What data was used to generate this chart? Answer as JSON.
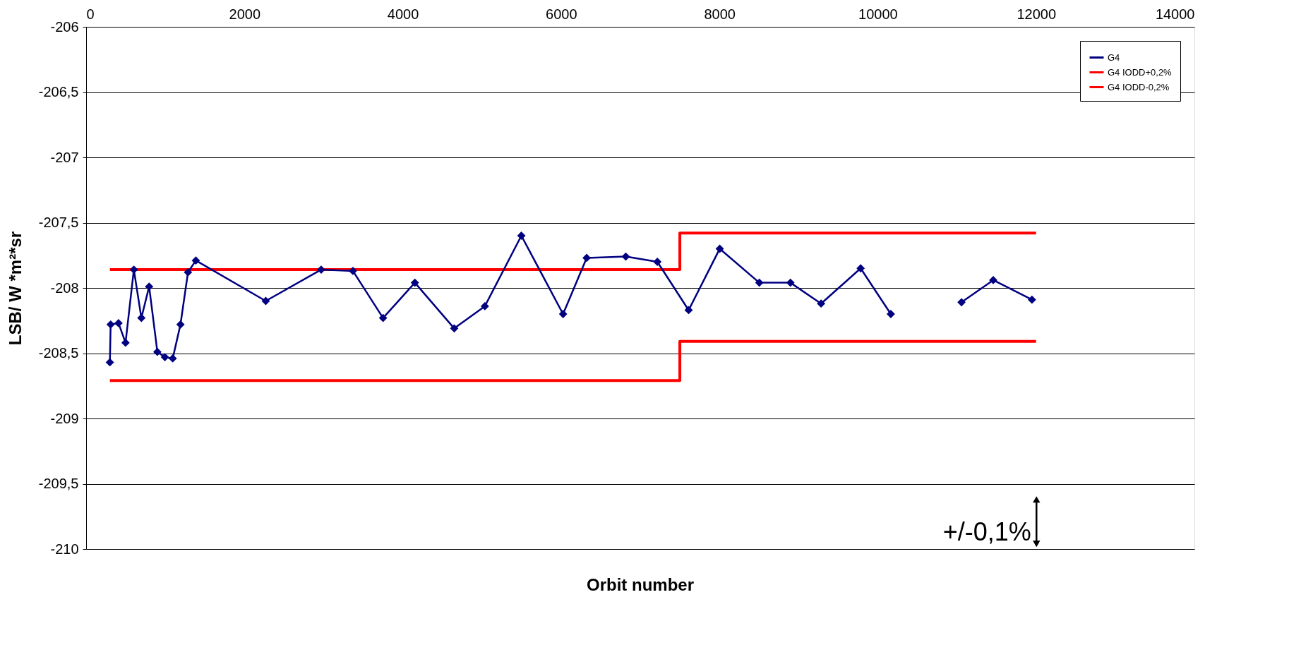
{
  "chart_data": {
    "type": "line",
    "xlabel": "Orbit number",
    "ylabel": "LSB/ W *m²*sr",
    "xlim": [
      0,
      14000
    ],
    "xticks": [
      0,
      2000,
      4000,
      6000,
      8000,
      10000,
      12000,
      14000
    ],
    "ylim": [
      -210,
      -206
    ],
    "yticks": [
      -206,
      {
        "value": -206.5,
        "label": "-206,5"
      },
      -207,
      {
        "value": -207.5,
        "label": "-207,5"
      },
      -208,
      {
        "value": -208.5,
        "label": "-208,5"
      },
      -209,
      {
        "value": -209.5,
        "label": "-209,5"
      },
      -210
    ],
    "grid": "y",
    "legend": "top right",
    "series": [
      {
        "name": "G4",
        "color": "#000080",
        "marker": "diamond",
        "x": [
          300,
          310,
          409,
          498,
          603,
          698,
          796,
          900,
          995,
          1094,
          1192,
          1287,
          1386,
          2269,
          2969,
          3370,
          3751,
          4153,
          4650,
          5037,
          5498,
          6025,
          6323,
          6817,
          7216,
          7611,
          8004,
          8504,
          8897,
          9284,
          9784,
          10165,
          10600,
          11058,
          11459,
          11948
        ],
        "values": [
          -208.57,
          -208.28,
          -208.27,
          -208.42,
          -207.86,
          -208.23,
          -207.99,
          -208.49,
          -208.53,
          -208.54,
          -208.28,
          -207.88,
          -207.79,
          -208.1,
          -207.86,
          -207.87,
          -208.23,
          -207.96,
          -208.31,
          -208.14,
          -207.6,
          -208.2,
          -207.77,
          -207.76,
          -207.8,
          -208.17,
          -207.7,
          -207.96,
          -207.96,
          -208.12,
          -207.85,
          -208.2,
          null,
          -208.11,
          -207.94,
          -208.09
        ]
      },
      {
        "name": "G4 IODD+0,2%",
        "color": "#ff0000",
        "marker": "none",
        "x": [
          300,
          7500,
          7500,
          12000
        ],
        "values": [
          -207.86,
          -207.86,
          -207.58,
          -207.58
        ]
      },
      {
        "name": "G4 IODD-0,2%",
        "color": "#ff0000",
        "marker": "none",
        "x": [
          300,
          7500,
          7500,
          12000
        ],
        "values": [
          -208.71,
          -208.71,
          -208.41,
          -208.41
        ]
      }
    ],
    "annotations": [
      "+/-0,1%"
    ]
  }
}
